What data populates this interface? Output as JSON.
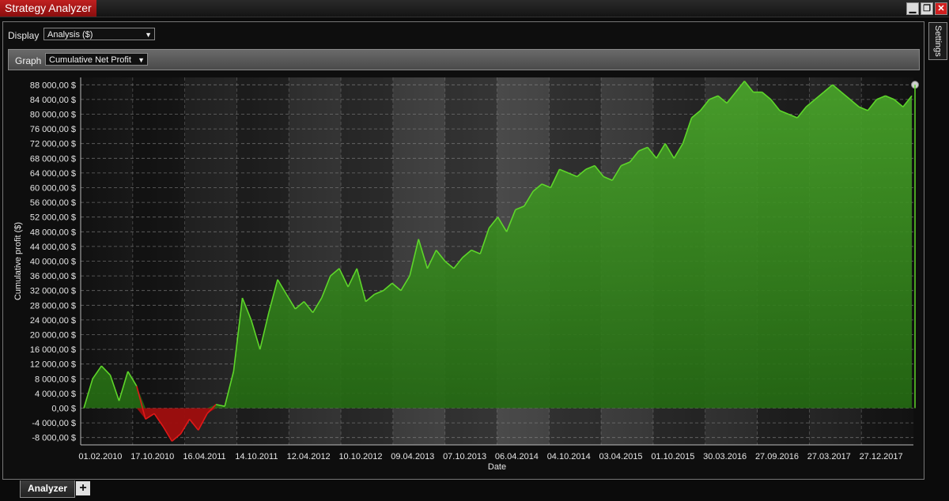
{
  "window": {
    "title": "Strategy Analyzer",
    "buttons": [
      "minimize-icon",
      "restore-icon",
      "close-icon"
    ]
  },
  "settings_tab": {
    "label": "Settings"
  },
  "display": {
    "label": "Display",
    "value": "Analysis ($)"
  },
  "graph": {
    "label": "Graph",
    "value": "Cumulative Net Profit"
  },
  "bottom_tabs": [
    {
      "label": "Analyzer"
    }
  ],
  "add_tab": {
    "label": "+"
  },
  "colors": {
    "positive": "#5ed62a",
    "positive_fill": "#2f7f16",
    "negative": "#e01818",
    "negative_fill": "#a00e0e",
    "title_tab": "#b01818"
  },
  "chart_data": {
    "type": "area",
    "xlabel": "Date",
    "ylabel": "Cumulative profit ($)",
    "ylim": [
      -10000,
      90000
    ],
    "yticks": [
      "88 000,00 $",
      "84 000,00 $",
      "80 000,00 $",
      "76 000,00 $",
      "72 000,00 $",
      "68 000,00 $",
      "64 000,00 $",
      "60 000,00 $",
      "56 000,00 $",
      "52 000,00 $",
      "48 000,00 $",
      "44 000,00 $",
      "40 000,00 $",
      "36 000,00 $",
      "32 000,00 $",
      "28 000,00 $",
      "24 000,00 $",
      "20 000,00 $",
      "16 000,00 $",
      "12 000,00 $",
      "8 000,00 $",
      "4 000,00 $",
      "0,00 $",
      "-4 000,00 $",
      "-8 000,00 $"
    ],
    "xticks": [
      "01.02.2010",
      "17.10.2010",
      "16.04.2011",
      "14.10.2011",
      "12.04.2012",
      "10.10.2012",
      "09.04.2013",
      "07.10.2013",
      "06.04.2014",
      "04.10.2014",
      "03.04.2015",
      "01.10.2015",
      "30.03.2016",
      "27.09.2016",
      "27.03.2017",
      "27.12.2017"
    ],
    "grid": true,
    "x": [
      "2010-02",
      "2010-03",
      "2010-04",
      "2010-05",
      "2010-06",
      "2010-07",
      "2010-08",
      "2010-09",
      "2010-10",
      "2010-11",
      "2010-12",
      "2011-01",
      "2011-02",
      "2011-03",
      "2011-04",
      "2011-05",
      "2011-06",
      "2011-07",
      "2011-08",
      "2011-09",
      "2011-10",
      "2011-11",
      "2011-12",
      "2012-01",
      "2012-02",
      "2012-03",
      "2012-04",
      "2012-05",
      "2012-06",
      "2012-07",
      "2012-08",
      "2012-09",
      "2012-10",
      "2012-11",
      "2012-12",
      "2013-01",
      "2013-02",
      "2013-03",
      "2013-04",
      "2013-05",
      "2013-06",
      "2013-07",
      "2013-08",
      "2013-09",
      "2013-10",
      "2013-11",
      "2013-12",
      "2014-01",
      "2014-02",
      "2014-03",
      "2014-04",
      "2014-05",
      "2014-06",
      "2014-07",
      "2014-08",
      "2014-09",
      "2014-10",
      "2014-11",
      "2014-12",
      "2015-01",
      "2015-02",
      "2015-03",
      "2015-04",
      "2015-05",
      "2015-06",
      "2015-07",
      "2015-08",
      "2015-09",
      "2015-10",
      "2015-11",
      "2015-12",
      "2016-01",
      "2016-02",
      "2016-03",
      "2016-04",
      "2016-05",
      "2016-06",
      "2016-07",
      "2016-08",
      "2016-09",
      "2016-10",
      "2016-11",
      "2016-12",
      "2017-01",
      "2017-02",
      "2017-03",
      "2017-04",
      "2017-05",
      "2017-06",
      "2017-07",
      "2017-08",
      "2017-09",
      "2017-10",
      "2017-11",
      "2017-12"
    ],
    "values": [
      0,
      8000,
      11500,
      9000,
      2000,
      10000,
      6000,
      -3000,
      -1500,
      -5000,
      -9000,
      -7000,
      -3000,
      -6000,
      -1500,
      1000,
      500,
      10000,
      30000,
      24000,
      16000,
      26000,
      35000,
      31000,
      27000,
      29000,
      26000,
      30000,
      36000,
      38000,
      33000,
      38000,
      29000,
      31000,
      32000,
      34000,
      32000,
      36000,
      46000,
      38000,
      43000,
      40000,
      38000,
      41000,
      43000,
      42000,
      49000,
      52000,
      48000,
      54000,
      55000,
      59000,
      61000,
      60000,
      65000,
      64000,
      63000,
      65000,
      66000,
      63000,
      62000,
      66000,
      67000,
      70000,
      71000,
      68000,
      72000,
      68000,
      72000,
      79000,
      81000,
      84000,
      85000,
      83000,
      86000,
      89000,
      86000,
      86000,
      84000,
      81000,
      80000,
      79000,
      82000,
      84000,
      86000,
      88000,
      86000,
      84000,
      82000,
      81000,
      84000,
      85000,
      84000,
      82000,
      85000
    ]
  }
}
